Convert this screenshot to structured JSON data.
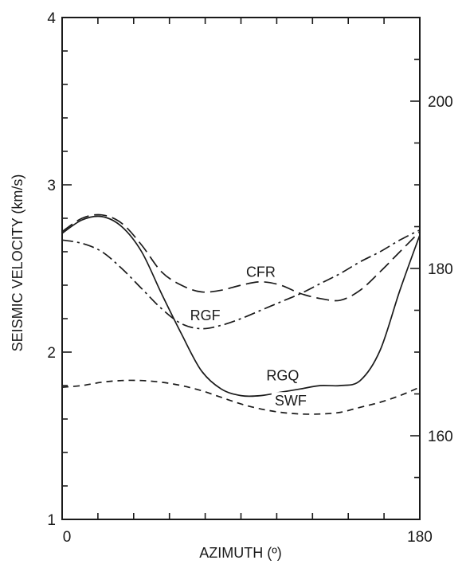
{
  "chart_data": {
    "type": "line",
    "title": "",
    "xlabel": "AZIMUTH (º)",
    "ylabel": "SEISMIC VELOCITY (km/s)",
    "xlim": [
      0,
      180
    ],
    "ylim": [
      1,
      4
    ],
    "y2lim": [
      150,
      210
    ],
    "x_tick_labels": [
      "0",
      "180"
    ],
    "y_tick_labels": [
      "1",
      "2",
      "3",
      "4"
    ],
    "y2_tick_labels": [
      "160",
      "180",
      "200"
    ],
    "grid": false,
    "legend": "none (series labelled inline)",
    "series": [
      {
        "name": "RGQ",
        "style": "solid",
        "color": "#1a1a1a",
        "x": [
          0,
          10,
          20,
          30,
          40,
          50,
          60,
          70,
          80,
          90,
          100,
          110,
          120,
          130,
          140,
          150,
          160,
          170,
          180
        ],
        "y": [
          2.71,
          2.79,
          2.81,
          2.75,
          2.6,
          2.35,
          2.11,
          1.89,
          1.78,
          1.74,
          1.74,
          1.76,
          1.78,
          1.8,
          1.8,
          1.83,
          2.01,
          2.37,
          2.7
        ]
      },
      {
        "name": "CFR",
        "style": "long-dash",
        "color": "#1a1a1a",
        "x": [
          0,
          10,
          20,
          30,
          40,
          50,
          60,
          70,
          80,
          90,
          100,
          110,
          120,
          130,
          140,
          150,
          160,
          170,
          180
        ],
        "y": [
          2.72,
          2.8,
          2.82,
          2.77,
          2.64,
          2.48,
          2.4,
          2.36,
          2.37,
          2.4,
          2.42,
          2.4,
          2.35,
          2.32,
          2.31,
          2.37,
          2.48,
          2.6,
          2.72
        ]
      },
      {
        "name": "RGF",
        "style": "dash-dot",
        "color": "#1a1a1a",
        "x": [
          0,
          10,
          20,
          30,
          40,
          50,
          60,
          70,
          80,
          90,
          100,
          110,
          120,
          130,
          140,
          150,
          160,
          170,
          180
        ],
        "y": [
          2.67,
          2.65,
          2.6,
          2.5,
          2.38,
          2.26,
          2.17,
          2.14,
          2.16,
          2.2,
          2.25,
          2.3,
          2.35,
          2.41,
          2.47,
          2.54,
          2.6,
          2.67,
          2.73
        ]
      },
      {
        "name": "SWF",
        "style": "short-dash",
        "color": "#1a1a1a",
        "x": [
          0,
          10,
          20,
          30,
          40,
          50,
          60,
          70,
          80,
          90,
          100,
          110,
          120,
          130,
          140,
          150,
          160,
          170,
          180
        ],
        "y": [
          1.79,
          1.8,
          1.82,
          1.83,
          1.83,
          1.82,
          1.8,
          1.77,
          1.73,
          1.69,
          1.66,
          1.64,
          1.63,
          1.63,
          1.64,
          1.67,
          1.7,
          1.74,
          1.79
        ]
      }
    ],
    "series_label_positions": [
      {
        "name": "CFR",
        "x": 100,
        "y": 2.45
      },
      {
        "name": "RGF",
        "x": 72,
        "y": 2.19
      },
      {
        "name": "RGQ",
        "x": 111,
        "y": 1.83
      },
      {
        "name": "SWF",
        "x": 115,
        "y": 1.68
      }
    ]
  }
}
